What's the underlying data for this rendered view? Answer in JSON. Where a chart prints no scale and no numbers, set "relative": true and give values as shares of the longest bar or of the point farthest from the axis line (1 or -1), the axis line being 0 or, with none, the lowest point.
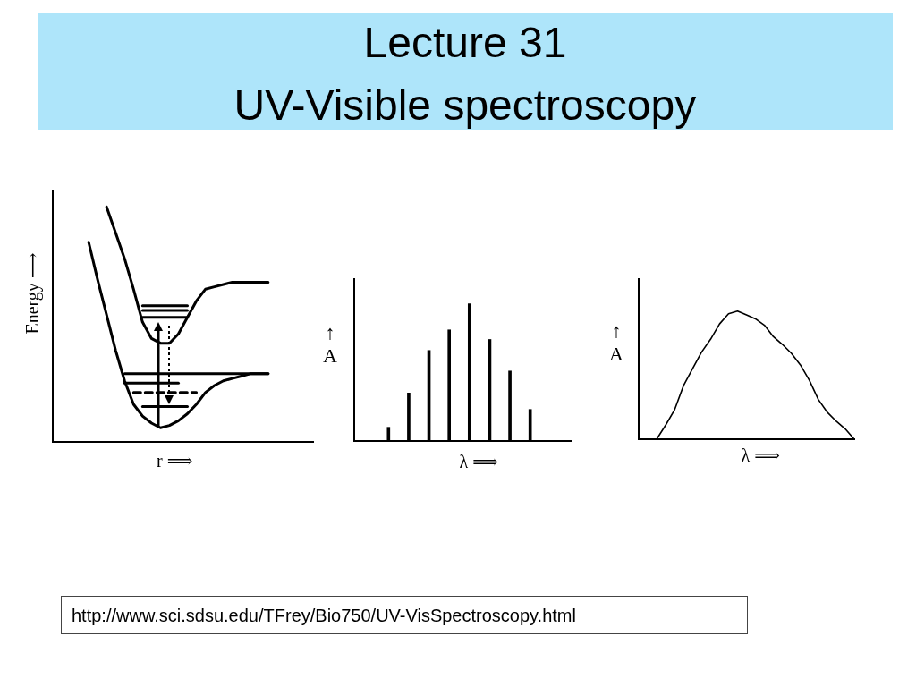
{
  "chart_data": [
    {
      "type": "line",
      "xlabel": "r ⟹",
      "ylabel": "Energy ⟶",
      "relative": true,
      "annotations": [
        "http://www.sci.sdsu.edu/TFrey/Bio750/UV-VisSpectroscopy.html"
      ],
      "categories": [
        null,
        null,
        null,
        null,
        null,
        null,
        null,
        null,
        null,
        null,
        null,
        null,
        null,
        null,
        null,
        null,
        null,
        null,
        null,
        null,
        null,
        null,
        null,
        null,
        null,
        null,
        null,
        null,
        null,
        null
      ],
      "series": [
        {
          "color": "#000000",
          "values": [
            null,
            null,
            null,
            null,
            0.85,
            0.69,
            0.54,
            0.39,
            0.26,
            0.16,
            0.11,
            0.08,
            0.06,
            0.07,
            0.09,
            0.12,
            0.16,
            0.21,
            0.24,
            0.26,
            0.27,
            0.28,
            0.29,
            0.29,
            0.29,
            null,
            null,
            null,
            null,
            null
          ]
        },
        {
          "color": "#000000",
          "values": [
            null,
            null,
            null,
            null,
            null,
            null,
            1.0,
            0.89,
            0.78,
            0.65,
            0.51,
            0.44,
            0.42,
            0.42,
            0.46,
            0.53,
            0.6,
            0.65,
            0.66,
            0.67,
            0.68,
            0.68,
            0.68,
            0.68,
            0.68,
            null,
            null,
            null,
            null,
            null
          ]
        },
        {
          "color": "#000000",
          "values": [
            null,
            null,
            null,
            null,
            null,
            null,
            null,
            null,
            null,
            null,
            0.58,
            0.58,
            0.58,
            0.58,
            0.58,
            0.58,
            null,
            null,
            null,
            null,
            null,
            null,
            null,
            null,
            null,
            null,
            null,
            null,
            null,
            null
          ]
        },
        {
          "color": "#000000",
          "values": [
            null,
            null,
            null,
            null,
            null,
            null,
            null,
            null,
            null,
            null,
            0.56,
            0.56,
            0.56,
            0.56,
            0.56,
            0.56,
            null,
            null,
            null,
            null,
            null,
            null,
            null,
            null,
            null,
            null,
            null,
            null,
            null,
            null
          ]
        },
        {
          "color": "#000000",
          "values": [
            null,
            null,
            null,
            null,
            null,
            null,
            null,
            null,
            null,
            null,
            0.53,
            0.53,
            0.53,
            0.53,
            0.53,
            0.53,
            null,
            null,
            null,
            null,
            null,
            null,
            null,
            null,
            null,
            null,
            null,
            null,
            null,
            null
          ]
        },
        {
          "color": "#000000",
          "values": [
            null,
            null,
            null,
            null,
            null,
            null,
            null,
            null,
            0.29,
            0.29,
            0.29,
            0.29,
            0.29,
            0.29,
            0.29,
            0.29,
            0.29,
            0.29,
            0.29,
            0.29,
            0.29,
            0.29,
            0.29,
            0.29,
            0.29,
            null,
            null,
            null,
            null,
            null
          ]
        },
        {
          "color": "#000000",
          "values": [
            null,
            null,
            null,
            null,
            null,
            null,
            null,
            null,
            0.25,
            0.25,
            0.25,
            0.25,
            0.25,
            0.25,
            0.25,
            null,
            null,
            null,
            null,
            null,
            null,
            null,
            null,
            null,
            null,
            null,
            null,
            null,
            null,
            null
          ]
        },
        {
          "color": "#000000",
          "line_style": "dashed",
          "values": [
            null,
            null,
            null,
            null,
            null,
            null,
            null,
            null,
            null,
            0.21,
            0.21,
            0.21,
            0.21,
            0.21,
            0.21,
            0.21,
            0.21,
            null,
            null,
            null,
            null,
            null,
            null,
            null,
            null,
            null,
            null,
            null,
            null,
            null
          ]
        },
        {
          "color": "#000000",
          "values": [
            null,
            null,
            null,
            null,
            null,
            null,
            null,
            null,
            null,
            null,
            0.15,
            0.15,
            0.15,
            0.15,
            0.15,
            0.15,
            null,
            null,
            null,
            null,
            null,
            null,
            null,
            null,
            null,
            null,
            null,
            null,
            null,
            null
          ]
        }
      ]
    },
    {
      "type": "bar",
      "title": "Lecture 31",
      "subtitle": "UV-Visible spectroscopy",
      "xlabel": "λ ⟹",
      "ylabel": "↑ A",
      "relative": true,
      "categories": [
        null,
        null,
        null,
        null,
        null,
        null,
        null,
        null
      ],
      "values": [
        0.1,
        0.35,
        0.66,
        0.81,
        1.0,
        0.74,
        0.51,
        0.23
      ],
      "color": "#000000"
    },
    {
      "type": "line",
      "xlabel": "λ ⟹",
      "ylabel": "↑ A",
      "relative": true,
      "categories": [
        null,
        null,
        null,
        null,
        null,
        null,
        null,
        null,
        null,
        null,
        null,
        null,
        null,
        null,
        null,
        null,
        null,
        null,
        null,
        null,
        null,
        null,
        null,
        null,
        null
      ],
      "values": [
        null,
        null,
        0,
        0.11,
        0.23,
        0.42,
        0.55,
        0.68,
        0.78,
        0.9,
        0.98,
        1.0,
        0.97,
        0.94,
        0.89,
        0.8,
        0.74,
        0.67,
        0.58,
        0.46,
        0.31,
        0.21,
        0.14,
        0.08,
        0
      ],
      "color": "#000000"
    }
  ]
}
